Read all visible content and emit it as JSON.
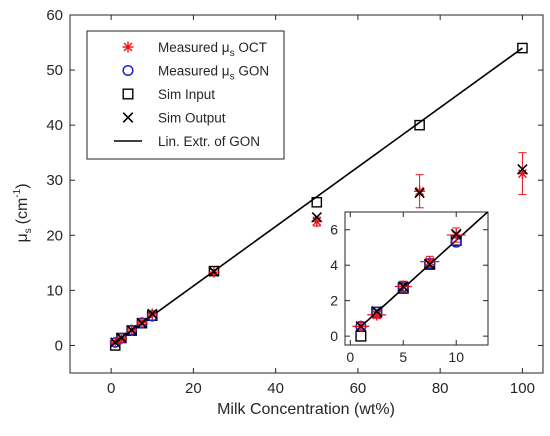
{
  "chart_data": {
    "type": "scatter",
    "xlabel": "Milk Concentration (wt%)",
    "ylabel": {
      "main": "μ",
      "sub": "s",
      "unit": "(cm",
      "sup": "-1",
      "close": ")"
    },
    "xlim": [
      -10,
      105
    ],
    "ylim": [
      -5,
      60
    ],
    "xticks": [
      0,
      20,
      40,
      60,
      80,
      100
    ],
    "yticks": [
      0,
      10,
      20,
      30,
      40,
      50,
      60
    ],
    "grid": false,
    "legend_position": "top-left",
    "legend": [
      {
        "key": "oct",
        "parts": [
          "Measured μ",
          "s",
          " OCT"
        ],
        "marker": "asterisk",
        "color": "#e8141a"
      },
      {
        "key": "gon",
        "parts": [
          "Measured μ",
          "s",
          " GON"
        ],
        "marker": "circle",
        "color": "#1f1fd6"
      },
      {
        "key": "sim_input",
        "parts": [
          "Sim Input"
        ],
        "marker": "square",
        "color": "#000000"
      },
      {
        "key": "sim_output",
        "parts": [
          "Sim Output"
        ],
        "marker": "x",
        "color": "#000000"
      },
      {
        "key": "lin",
        "parts": [
          "Lin. Extr. of GON"
        ],
        "marker": "line",
        "color": "#000000"
      }
    ],
    "series": [
      {
        "name": "Measured μs OCT",
        "marker": "asterisk",
        "color": "#e8141a",
        "x": [
          1,
          2.5,
          5,
          7.5,
          10,
          25,
          50,
          75,
          100
        ],
        "y": [
          0.55,
          1.2,
          2.8,
          4.2,
          5.7,
          13.3,
          22.5,
          28.0,
          31.2
        ],
        "yerr": [
          0.2,
          0.2,
          0.3,
          0.3,
          0.4,
          0.5,
          0.8,
          3.0,
          3.8
        ],
        "xerr": [
          0.8,
          0.9,
          0.8,
          0.9,
          0.9,
          0,
          0,
          0,
          0
        ]
      },
      {
        "name": "Measured μs GON",
        "marker": "circle",
        "color": "#1f1fd6",
        "x": [
          1,
          2.5,
          5,
          7.5,
          10
        ],
        "y": [
          0.55,
          1.35,
          2.8,
          4.1,
          5.3
        ]
      },
      {
        "name": "Sim Input",
        "marker": "square",
        "color": "#000000",
        "x": [
          1,
          2.5,
          5,
          7.5,
          10,
          25,
          50,
          75,
          100
        ],
        "y": [
          0.0,
          1.35,
          2.7,
          4.05,
          5.4,
          13.5,
          26.0,
          40.0,
          54.0
        ]
      },
      {
        "name": "Sim Output",
        "marker": "x",
        "color": "#000000",
        "x": [
          1,
          2.5,
          5,
          7.5,
          10,
          25,
          50,
          75,
          100
        ],
        "y": [
          0.55,
          1.4,
          2.8,
          4.05,
          5.75,
          13.4,
          23.3,
          27.7,
          32.0
        ]
      },
      {
        "name": "Lin. Extr. of GON",
        "marker": "line",
        "color": "#000000",
        "x": [
          1,
          100
        ],
        "y": [
          0.54,
          54.0
        ]
      }
    ],
    "inset": {
      "xlim": [
        -0.5,
        13
      ],
      "ylim": [
        -0.5,
        7
      ],
      "xticks": [
        0,
        5,
        10
      ],
      "yticks": [
        0,
        2,
        4,
        6
      ]
    }
  }
}
